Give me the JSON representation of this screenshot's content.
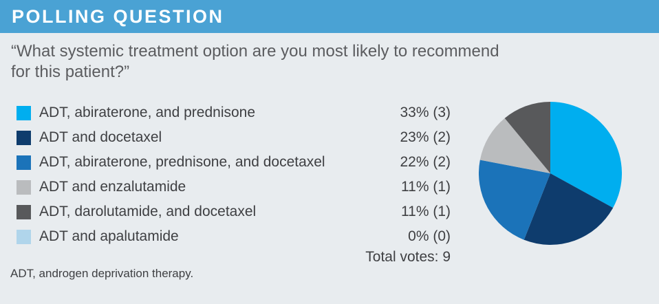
{
  "header": {
    "title": "POLLING QUESTION"
  },
  "question": {
    "text": "“What systemic treatment option are you most likely to recommend for this patient?”"
  },
  "poll": {
    "options": [
      {
        "label": "ADT, abiraterone, and prednisone",
        "result": "33% (3)",
        "percent": 33,
        "votes": 3,
        "color": "#00AEEF"
      },
      {
        "label": "ADT and docetaxel",
        "result": "23% (2)",
        "percent": 23,
        "votes": 2,
        "color": "#0E3C6D"
      },
      {
        "label": "ADT, abiraterone, prednisone, and docetaxel",
        "result": "22% (2)",
        "percent": 22,
        "votes": 2,
        "color": "#1B73B9"
      },
      {
        "label": "ADT and enzalutamide",
        "result": "11% (1)",
        "percent": 11,
        "votes": 1,
        "color": "#BABCBE"
      },
      {
        "label": "ADT, darolutamide, and docetaxel",
        "result": "11% (1)",
        "percent": 11,
        "votes": 1,
        "color": "#58595B"
      },
      {
        "label": "ADT and apalutamide",
        "result": "0% (0)",
        "percent": 0,
        "votes": 0,
        "color": "#B0D5EB"
      }
    ],
    "total_label": "Total votes: 9",
    "total_votes": 9
  },
  "footnote": {
    "text": "ADT, androgen deprivation therapy."
  },
  "colors": {
    "header_bg": "#4AA2D4",
    "header_text": "#FFFFFF",
    "page_bg": "#E8ECEF",
    "question_text": "#5B5C5F",
    "body_text": "#3E3F42"
  },
  "chart_data": {
    "type": "pie",
    "title": "POLLING QUESTION",
    "question": "“What systemic treatment option are you most likely to recommend for this patient?”",
    "categories": [
      "ADT, abiraterone, and prednisone",
      "ADT and docetaxel",
      "ADT, abiraterone, prednisone, and docetaxel",
      "ADT and enzalutamide",
      "ADT, darolutamide, and docetaxel",
      "ADT and apalutamide"
    ],
    "values": [
      33,
      23,
      22,
      11,
      11,
      0
    ],
    "votes": [
      3,
      2,
      2,
      1,
      1,
      0
    ],
    "total_votes": 9,
    "colors": [
      "#00AEEF",
      "#0E3C6D",
      "#1B73B9",
      "#BABCBE",
      "#58595B",
      "#B0D5EB"
    ],
    "start_angle_deg": 0,
    "direction": "clockwise",
    "legend_position": "left",
    "footnote": "ADT, androgen deprivation therapy."
  }
}
